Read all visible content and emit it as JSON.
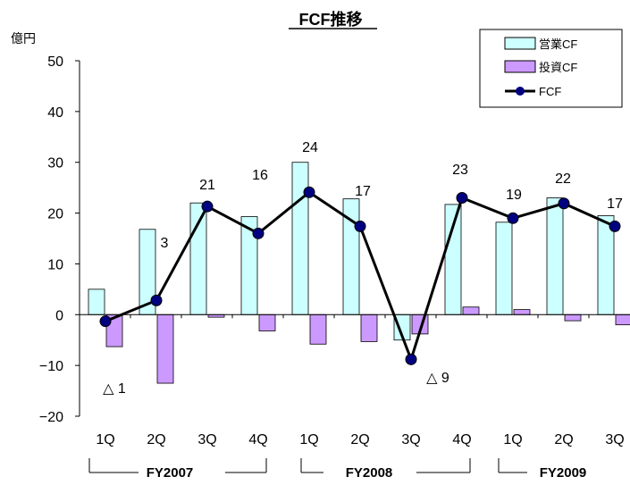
{
  "chart_data": {
    "type": "bar",
    "title": "FCF推移",
    "ylabel": "億円",
    "ylim": [
      -20,
      50
    ],
    "yticks": [
      -20,
      -10,
      0,
      10,
      20,
      30,
      40,
      50
    ],
    "categories": [
      "1Q",
      "2Q",
      "3Q",
      "4Q",
      "1Q",
      "2Q",
      "3Q",
      "4Q",
      "1Q",
      "2Q",
      "3Q"
    ],
    "groups": [
      {
        "label": "FY2007",
        "from": 0,
        "to": 3
      },
      {
        "label": "FY2008",
        "from": 4,
        "to": 7
      },
      {
        "label": "FY2009",
        "from": 8,
        "to": 10
      }
    ],
    "series": [
      {
        "name": "営業CF",
        "type": "bar",
        "color": "#ccffff",
        "values": [
          5,
          16.8,
          22,
          19.3,
          30,
          22.8,
          -5,
          21.7,
          18.2,
          23,
          19.5
        ]
      },
      {
        "name": "投資CF",
        "type": "bar",
        "color": "#cc99ff",
        "values": [
          -6.3,
          -13.5,
          -0.5,
          -3.2,
          -5.8,
          -5.3,
          -3.8,
          1.5,
          1,
          -1.2,
          -2
        ]
      },
      {
        "name": "FCF",
        "type": "line",
        "color": "#000080",
        "values": [
          -1.3,
          2.8,
          21.3,
          16,
          24.1,
          17.4,
          -8.8,
          23,
          19,
          21.9,
          17.4
        ]
      }
    ],
    "data_labels": [
      "△ 1",
      "3",
      "21",
      "16",
      "24",
      "17",
      "△ 9",
      "23",
      "19",
      "22",
      "17"
    ],
    "legend_position": "top-right",
    "grid": false
  }
}
